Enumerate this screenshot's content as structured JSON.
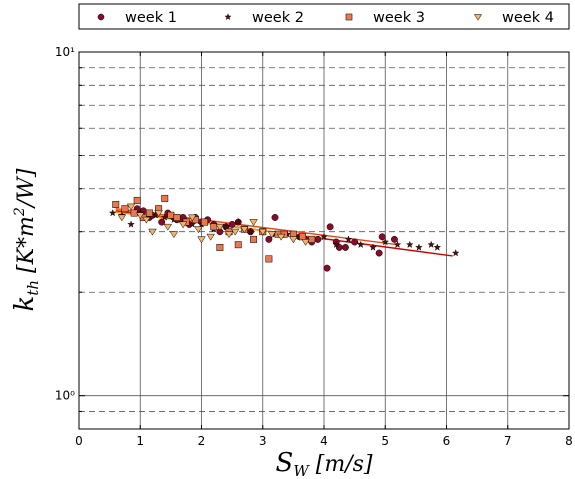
{
  "chart_data": {
    "type": "scatter",
    "xscale": "linear",
    "yscale": "log",
    "xlim": [
      0,
      8
    ],
    "ylim": [
      0.8,
      10
    ],
    "x_ticks": [
      0,
      1,
      2,
      3,
      4,
      5,
      6,
      7,
      8
    ],
    "x_tick_labels": [
      "0",
      "1",
      "2",
      "3",
      "4",
      "5",
      "6",
      "7",
      "8"
    ],
    "y_major_ticks": [
      1,
      10
    ],
    "y_tick_labels": [
      "10⁰",
      "10¹"
    ],
    "y_grid_major": [
      1
    ],
    "y_grid_minor": [
      0.9,
      2,
      3,
      4,
      5,
      6,
      7,
      8,
      9
    ],
    "x_grid": [
      1,
      2,
      3,
      4,
      5,
      6,
      7
    ],
    "grid": true,
    "xlabel": "S_W  [m/s]",
    "ylabel": "k_th  [K*m²/W]",
    "legend_position": "top, outside, single row",
    "series": [
      {
        "name": "week 1",
        "marker": "circle",
        "color": "#8b0a2a",
        "x": [
          0.95,
          1.05,
          1.15,
          1.2,
          1.3,
          1.35,
          1.45,
          1.55,
          1.6,
          1.7,
          1.8,
          1.9,
          2.0,
          2.1,
          2.2,
          2.3,
          2.4,
          2.5,
          2.6,
          2.8,
          3.0,
          3.1,
          3.2,
          3.35,
          3.5,
          3.6,
          3.7,
          3.8,
          3.9,
          4.05,
          4.1,
          4.2,
          4.25,
          4.35,
          4.5,
          4.9,
          4.95,
          5.15
        ],
        "y": [
          3.5,
          3.45,
          3.3,
          3.35,
          3.5,
          3.2,
          3.4,
          3.3,
          3.25,
          3.3,
          3.15,
          3.3,
          3.2,
          3.25,
          3.15,
          3.0,
          3.1,
          3.15,
          3.2,
          3.0,
          3.0,
          2.85,
          3.3,
          2.95,
          2.9,
          2.9,
          2.85,
          2.8,
          2.85,
          2.35,
          3.1,
          2.8,
          2.7,
          2.7,
          2.8,
          2.6,
          2.9,
          2.85
        ]
      },
      {
        "name": "week 2",
        "marker": "star",
        "color": "#4a1212",
        "x": [
          0.55,
          0.7,
          0.85,
          1.0,
          1.1,
          1.25,
          1.4,
          1.55,
          1.7,
          1.85,
          2.0,
          2.2,
          2.4,
          2.6,
          2.8,
          3.0,
          3.2,
          3.4,
          3.6,
          3.8,
          4.0,
          4.2,
          4.4,
          4.6,
          4.8,
          5.0,
          5.2,
          5.4,
          5.55,
          5.75,
          5.85,
          6.15
        ],
        "y": [
          3.4,
          3.35,
          3.15,
          3.4,
          3.3,
          3.35,
          3.3,
          3.25,
          3.2,
          3.15,
          3.15,
          3.05,
          3.1,
          3.2,
          3.0,
          3.0,
          2.95,
          2.95,
          2.9,
          2.85,
          2.9,
          2.75,
          2.85,
          2.75,
          2.7,
          2.8,
          2.75,
          2.75,
          2.7,
          2.75,
          2.7,
          2.6
        ]
      },
      {
        "name": "week 3",
        "marker": "square",
        "color": "#e8794e",
        "x": [
          0.6,
          0.75,
          0.9,
          0.95,
          1.05,
          1.15,
          1.3,
          1.4,
          1.5,
          1.6,
          1.75,
          1.9,
          2.05,
          2.2,
          2.3,
          2.45,
          2.6,
          2.7,
          2.85,
          3.0,
          3.1,
          3.25,
          3.35,
          3.5,
          3.65,
          3.8
        ],
        "y": [
          3.6,
          3.5,
          3.4,
          3.7,
          3.3,
          3.4,
          3.5,
          3.75,
          3.35,
          3.3,
          3.2,
          3.25,
          3.2,
          3.1,
          2.7,
          3.0,
          2.75,
          3.05,
          2.85,
          3.0,
          2.5,
          2.95,
          2.95,
          2.95,
          2.9,
          2.85
        ]
      },
      {
        "name": "week 4",
        "marker": "triangle-down",
        "color": "#f2b268",
        "x": [
          0.7,
          0.85,
          1.0,
          1.1,
          1.2,
          1.3,
          1.45,
          1.55,
          1.7,
          1.85,
          1.95,
          2.0,
          2.15,
          2.3,
          2.45,
          2.55,
          2.7,
          2.85,
          3.0,
          3.15,
          3.3,
          3.5,
          3.7
        ],
        "y": [
          3.3,
          3.55,
          3.35,
          3.25,
          3.0,
          3.4,
          3.1,
          2.95,
          3.15,
          3.3,
          3.05,
          2.85,
          2.9,
          3.1,
          2.95,
          3.0,
          3.05,
          3.2,
          3.0,
          2.95,
          2.9,
          2.85,
          2.8
        ]
      }
    ],
    "fit_lines": [
      {
        "color": "#cc0000",
        "x": [
          0.6,
          6.1
        ],
        "y": [
          3.45,
          2.55
        ]
      },
      {
        "color": "#e64a19",
        "x": [
          0.6,
          5.2
        ],
        "y": [
          3.5,
          2.75
        ]
      },
      {
        "color": "#f57c00",
        "x": [
          0.6,
          4.0
        ],
        "y": [
          3.48,
          2.85
        ]
      },
      {
        "color": "#ff9800",
        "x": [
          0.6,
          3.8
        ],
        "y": [
          3.42,
          2.9
        ]
      }
    ]
  }
}
